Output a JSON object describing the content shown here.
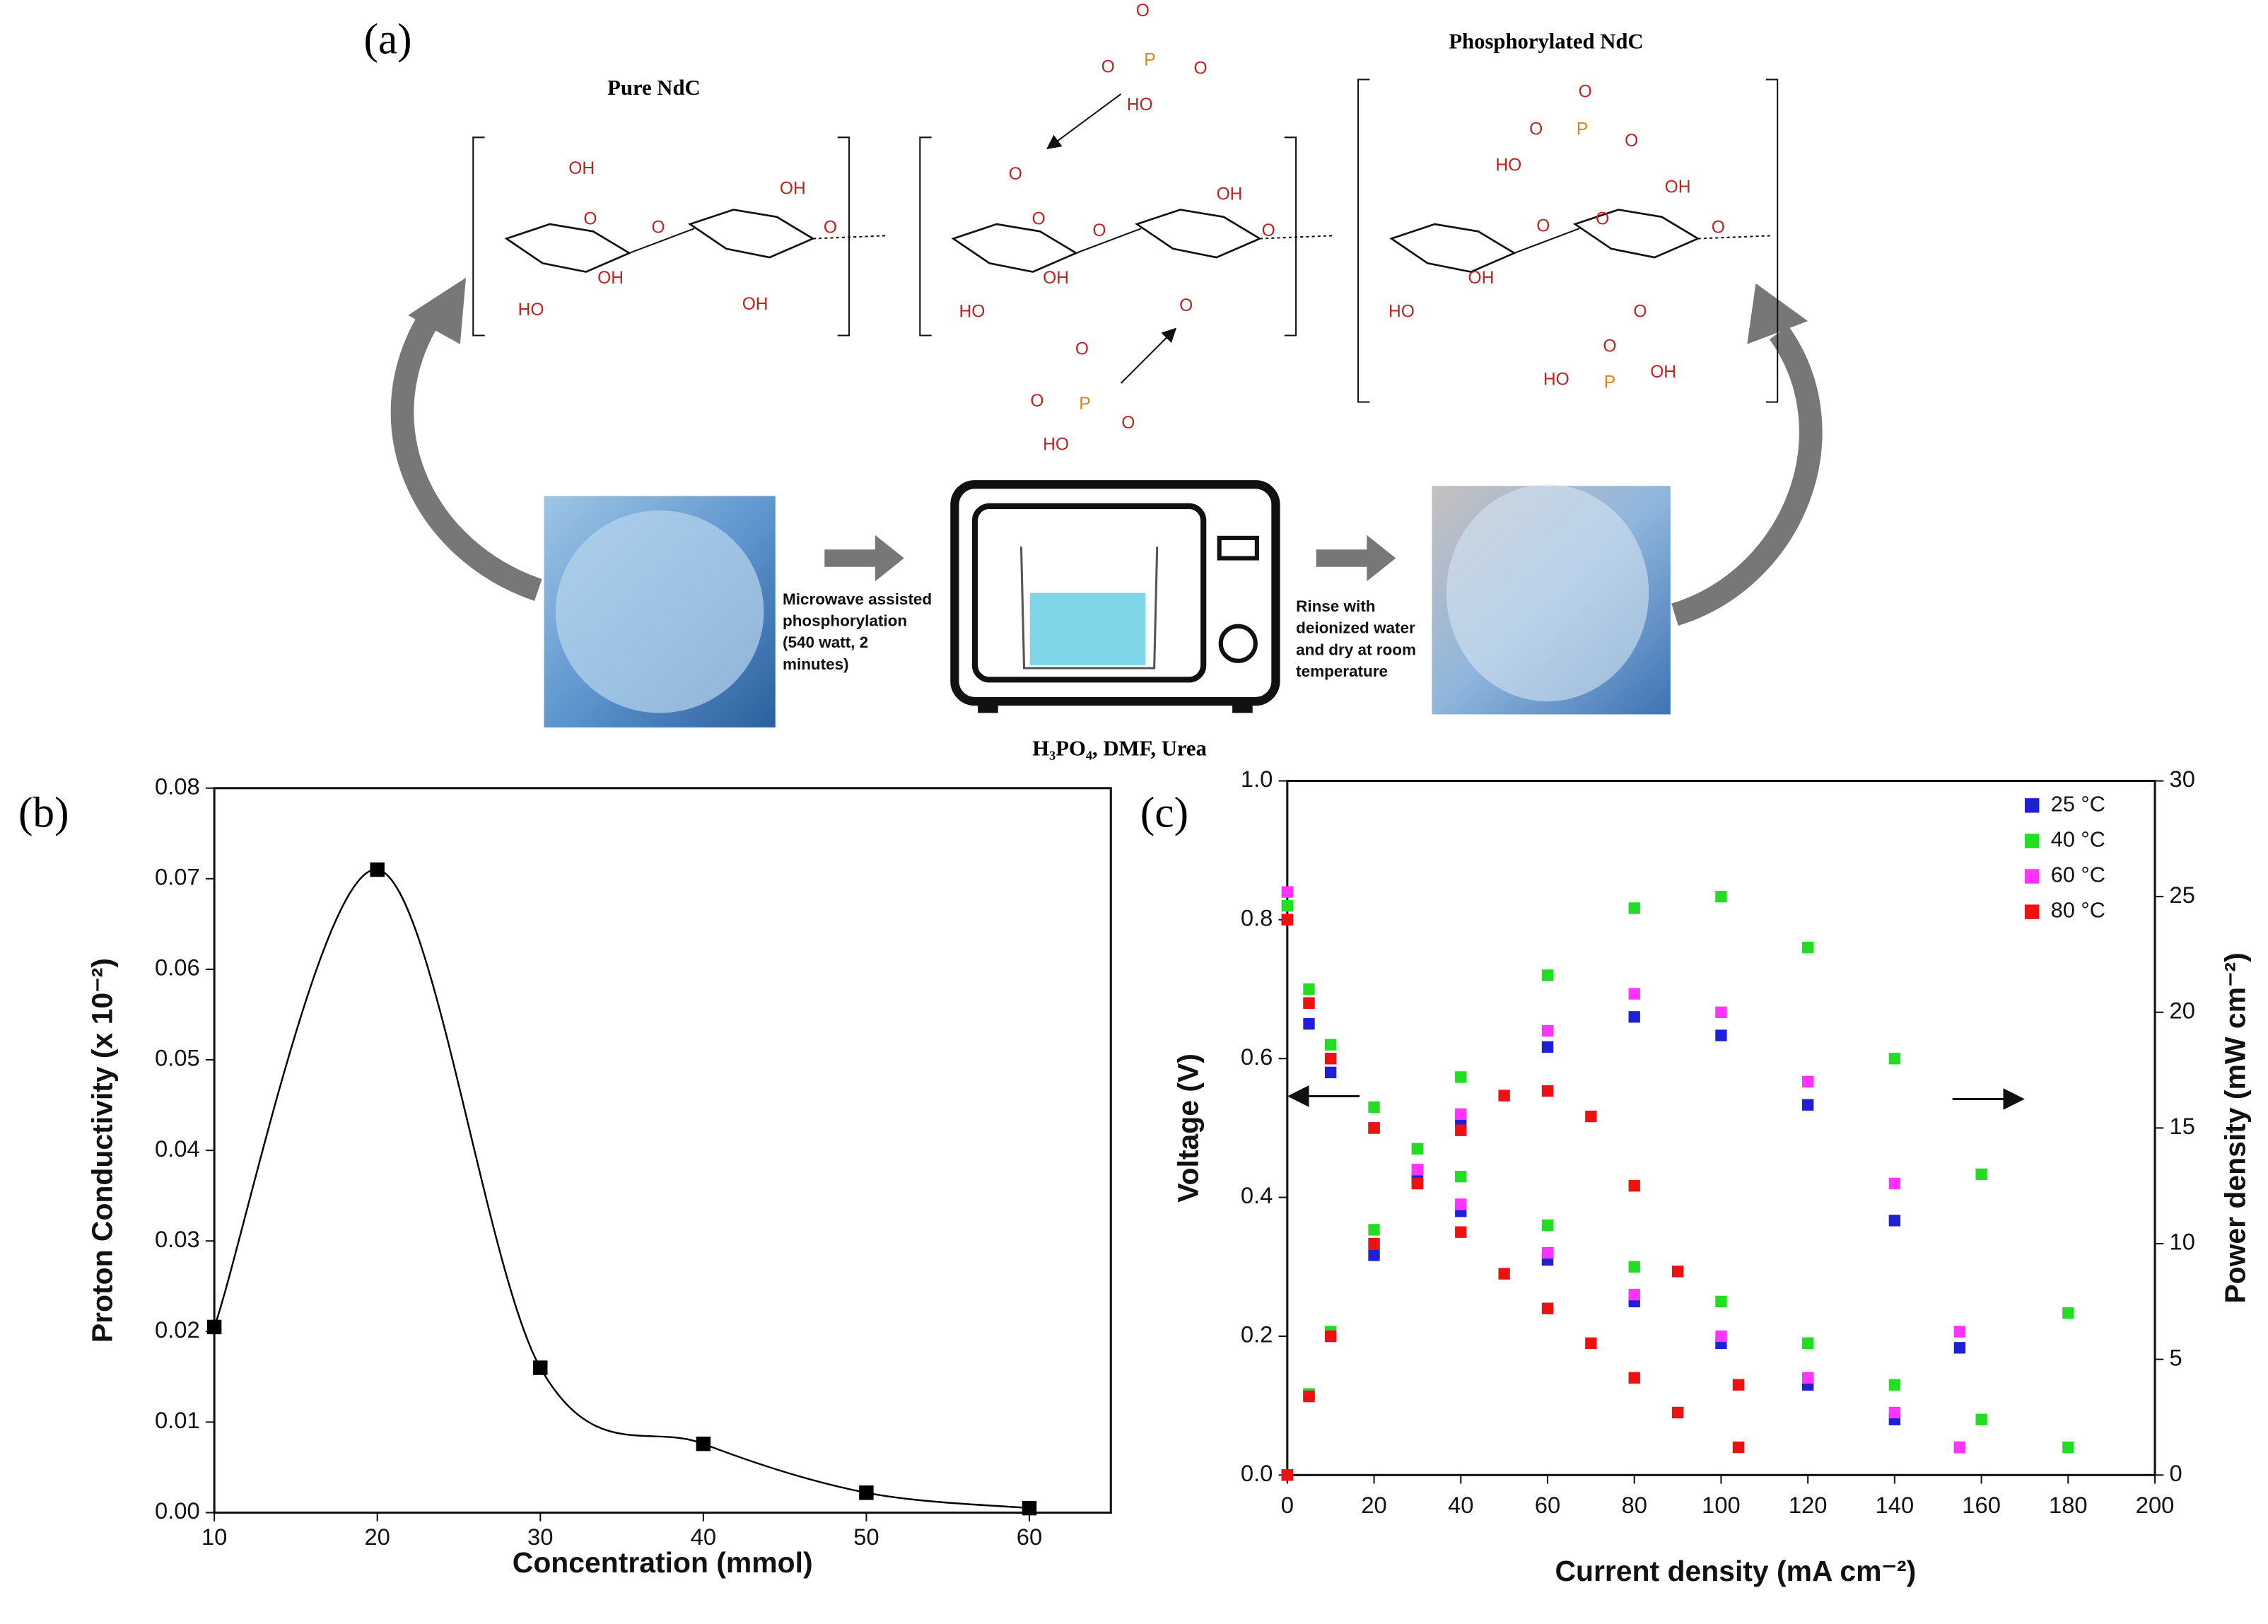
{
  "panel_a": {
    "label": "(a)",
    "pure_title": "Pure NdC",
    "phos_title": "Phosphorylated NdC",
    "step1": [
      "Microwave assisted",
      "phosphorylation",
      "(540 watt, 2",
      "minutes)"
    ],
    "step2": [
      "Rinse with",
      "deionized water",
      "and dry at room",
      "temperature"
    ],
    "reagents": "H₃PO₄, DMF, Urea",
    "structures": [
      [
        "OH",
        "O",
        "O",
        "OH",
        "O",
        "HO",
        "OH",
        "OH"
      ],
      [
        "O",
        "O",
        "O",
        "OH",
        "O",
        "HO",
        "OH",
        "O",
        "O",
        "O",
        "P",
        "O",
        "HO",
        "O",
        "O",
        "P",
        "O",
        "HO"
      ],
      [
        "O",
        "O",
        "P",
        "O",
        "HO",
        "O",
        "O",
        "OH",
        "O",
        "HO",
        "OH",
        "O",
        "O",
        "P",
        "HO",
        "OH"
      ]
    ]
  },
  "chart_data": [
    {
      "type": "line",
      "panel_label": "(b)",
      "xlabel": "Concentration  (mmol)",
      "ylabel": "Proton Conductivity  (x 10⁻²)",
      "x": [
        10,
        20,
        30,
        40,
        50,
        60
      ],
      "values": [
        0.0205,
        0.071,
        0.016,
        0.0076,
        0.0022,
        0.0005
      ],
      "color": "#000000",
      "xlim": [
        10,
        65
      ],
      "xticks": [
        10,
        20,
        30,
        40,
        50,
        60
      ],
      "ylim": [
        0,
        0.08
      ],
      "yticks": [
        {
          "value": 0,
          "label": "0.00"
        },
        0.01,
        0.02,
        0.03,
        0.04,
        0.05,
        0.06,
        0.07,
        0.08
      ]
    },
    {
      "type": "scatter",
      "panel_label": "(c)",
      "xlabel": "Current density  (mA cm⁻²)",
      "ylabel": "Voltage  (V)",
      "y2label": "Power density  (mW cm⁻²)",
      "xlim": [
        0,
        200
      ],
      "xticks": [
        0,
        20,
        40,
        60,
        80,
        100,
        120,
        140,
        160,
        180,
        200
      ],
      "ylim": [
        0,
        1
      ],
      "yticks": [
        {
          "value": 0,
          "label": "0.0"
        },
        0.2,
        0.4,
        0.6,
        0.8,
        {
          "value": 1,
          "label": "1.0"
        }
      ],
      "y2lim": [
        0,
        30
      ],
      "y2ticks": [
        0,
        5,
        10,
        15,
        20,
        25,
        30
      ],
      "legend": "upper right",
      "series": [
        {
          "name": "25 °C",
          "color": "#1f1fd6",
          "x": [
            0,
            5,
            10,
            20,
            30,
            40,
            60,
            80,
            100,
            120,
            140,
            155
          ],
          "values": [
            0.8,
            0.65,
            0.58,
            0.5,
            0.43,
            0.38,
            0.31,
            0.25,
            0.19,
            0.13,
            0.08,
            0.04
          ]
        },
        {
          "name": "40 °C",
          "color": "#22dd22",
          "x": [
            0,
            5,
            10,
            20,
            30,
            40,
            60,
            80,
            100,
            120,
            140,
            160,
            180
          ],
          "values": [
            0.82,
            0.7,
            0.62,
            0.53,
            0.47,
            0.43,
            0.36,
            0.3,
            0.25,
            0.19,
            0.13,
            0.08,
            0.04
          ]
        },
        {
          "name": "60 °C",
          "color": "#ff33ff",
          "x": [
            0,
            5,
            10,
            20,
            30,
            40,
            60,
            80,
            100,
            120,
            140,
            155
          ],
          "values": [
            0.84,
            0.68,
            0.6,
            0.5,
            0.44,
            0.39,
            0.32,
            0.26,
            0.2,
            0.14,
            0.09,
            0.04
          ]
        },
        {
          "name": "80 °C",
          "color": "#ee1111",
          "x": [
            0,
            5,
            10,
            20,
            30,
            40,
            50,
            60,
            70,
            80,
            90,
            104
          ],
          "values": [
            0.8,
            0.68,
            0.6,
            0.5,
            0.42,
            0.35,
            0.29,
            0.24,
            0.19,
            0.14,
            0.09,
            0.04
          ]
        },
        {
          "color": "#1f1fd6",
          "axis": "y2",
          "x": [
            0,
            5,
            10,
            20,
            30,
            40,
            60,
            80,
            100,
            120,
            140,
            155
          ],
          "values": [
            0,
            3.5,
            6,
            9.5,
            12.8,
            15.3,
            18.5,
            19.8,
            19,
            16,
            11,
            5.5
          ]
        },
        {
          "color": "#22dd22",
          "axis": "y2",
          "x": [
            0,
            5,
            10,
            20,
            30,
            40,
            60,
            80,
            100,
            120,
            140,
            160,
            180
          ],
          "values": [
            0,
            3.5,
            6.2,
            10.6,
            14.1,
            17.2,
            21.6,
            24.5,
            25,
            22.8,
            18,
            13,
            7
          ]
        },
        {
          "color": "#ff33ff",
          "axis": "y2",
          "x": [
            0,
            5,
            10,
            20,
            30,
            40,
            60,
            80,
            100,
            120,
            140,
            155
          ],
          "values": [
            0,
            3.4,
            6,
            10,
            13.2,
            15.6,
            19.2,
            20.8,
            20,
            17,
            12.6,
            6.2
          ]
        },
        {
          "color": "#ee1111",
          "axis": "y2",
          "x": [
            0,
            5,
            10,
            20,
            30,
            40,
            50,
            60,
            70,
            80,
            90,
            104
          ],
          "values": [
            0,
            3.4,
            6,
            10,
            12.6,
            14.9,
            16.4,
            16.6,
            15.5,
            12.5,
            8.8,
            3.9
          ]
        }
      ]
    }
  ]
}
